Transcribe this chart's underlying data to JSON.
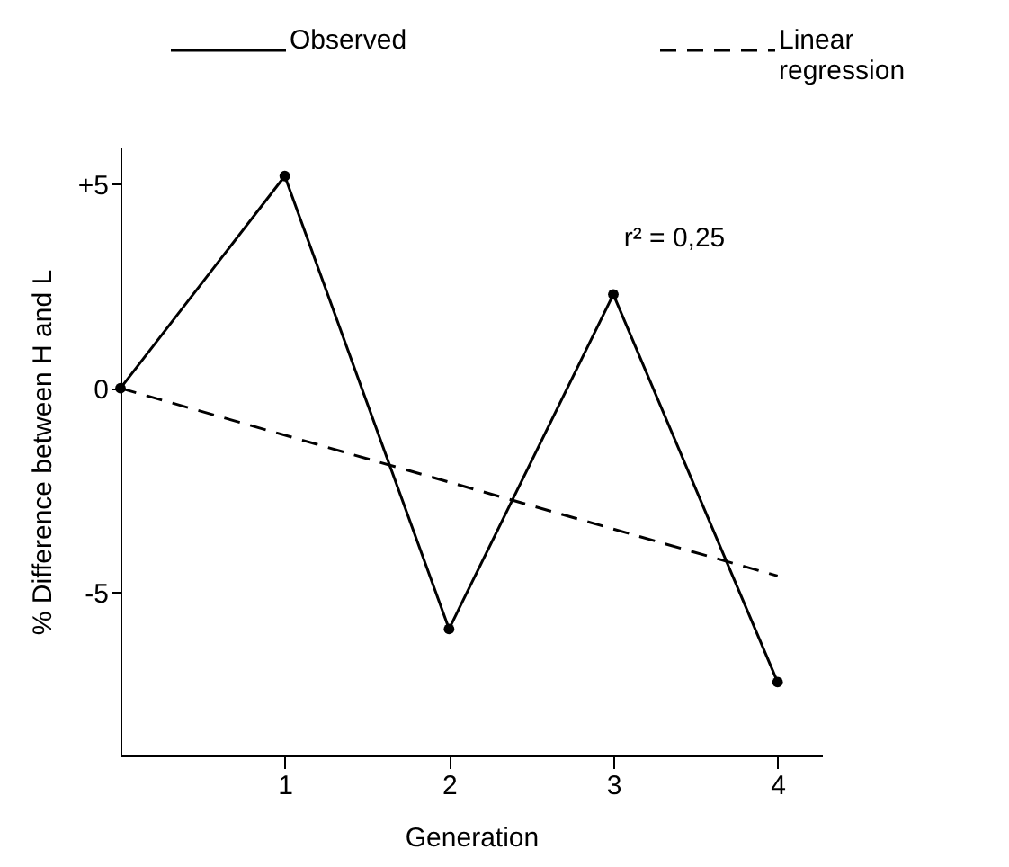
{
  "chart_data": {
    "type": "line",
    "xlabel": "Generation",
    "ylabel": "% Difference between H and L",
    "xlim": [
      0,
      4.27
    ],
    "xticks": [
      1,
      2,
      3,
      4
    ],
    "ylim": [
      -9,
      5.9
    ],
    "yticks": [
      {
        "value": 5,
        "label": "+5"
      },
      0,
      -5
    ],
    "grid": false,
    "legend": "top",
    "annotations": [
      "r² = 0,25"
    ],
    "series": [
      {
        "name": "Observed",
        "color": "#000000",
        "line_style": "solid",
        "marker": "circle",
        "x": [
          0,
          1,
          2,
          3,
          4
        ],
        "values": [
          0,
          5.2,
          -5.9,
          2.3,
          -7.2
        ]
      },
      {
        "name": "Linear regression",
        "color": "#000000",
        "line_style": "dashed",
        "marker": "none",
        "x": [
          0,
          4
        ],
        "values": [
          0,
          -4.6
        ]
      }
    ]
  }
}
